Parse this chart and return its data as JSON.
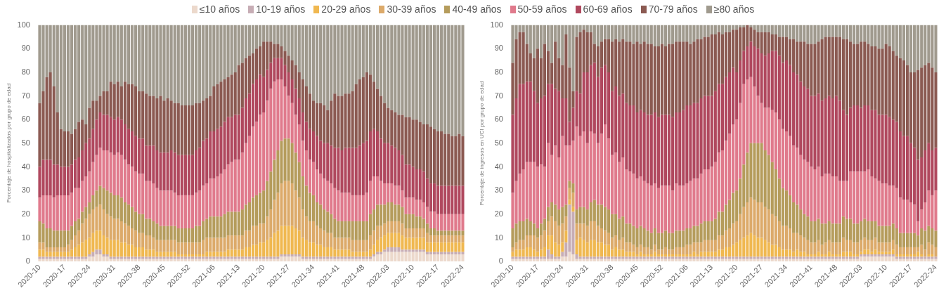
{
  "chart_data": [
    {
      "type": "bar",
      "stacked": true,
      "ylabel": "Porcentaje de hospitalizados por grupo de edad",
      "ylim": [
        0,
        100
      ],
      "yticks": [
        0,
        10,
        20,
        30,
        40,
        50,
        60,
        70,
        80,
        90,
        100
      ],
      "legend": "top",
      "categories": [
        "2020-10",
        null,
        null,
        null,
        null,
        null,
        null,
        "2020-17",
        null,
        null,
        null,
        null,
        null,
        null,
        "2020-24",
        null,
        null,
        null,
        null,
        null,
        null,
        "2020-31",
        null,
        null,
        null,
        null,
        null,
        null,
        "2020-38",
        null,
        null,
        null,
        null,
        null,
        null,
        "2020-45",
        null,
        null,
        null,
        null,
        null,
        null,
        "2020-52",
        null,
        null,
        null,
        null,
        null,
        null,
        "2021-06",
        null,
        null,
        null,
        null,
        null,
        null,
        "2021-13",
        null,
        null,
        null,
        null,
        null,
        null,
        "2021-20",
        null,
        null,
        null,
        null,
        null,
        null,
        "2021-27",
        null,
        null,
        null,
        null,
        null,
        null,
        "2021-34",
        null,
        null,
        null,
        null,
        null,
        null,
        "2021-41",
        null,
        null,
        null,
        null,
        null,
        null,
        "2021-48",
        null,
        null,
        null,
        null,
        null,
        null,
        "2022-03",
        null,
        null,
        null,
        null,
        null,
        null,
        "2022-10",
        null,
        null,
        null,
        null,
        null,
        null,
        "2022-17",
        null,
        null,
        null,
        null,
        null,
        null,
        "2022-24"
      ],
      "series": [
        {
          "name": "≤10 años",
          "color": "#ecd9cc",
          "values": [
            1,
            1,
            1,
            1,
            1,
            1,
            1,
            1,
            1,
            1,
            1,
            1,
            1,
            1,
            2,
            2,
            3,
            3,
            2,
            2,
            1,
            1,
            1,
            1,
            1,
            1,
            1,
            1,
            1,
            1,
            1,
            1,
            1,
            1,
            1,
            1,
            1,
            1,
            1,
            1,
            1,
            1,
            1,
            1,
            1,
            1,
            1,
            1,
            1,
            1,
            1,
            1,
            1,
            1,
            1,
            1,
            1,
            1,
            1,
            1,
            1,
            1,
            1,
            1,
            1,
            1,
            1,
            1,
            2,
            2,
            2,
            2,
            2,
            2,
            1,
            1,
            1,
            1,
            1,
            1,
            1,
            1,
            1,
            1,
            1,
            1,
            1,
            1,
            1,
            1,
            1,
            1,
            1,
            1,
            2,
            3,
            3,
            4,
            4,
            4,
            4,
            4,
            4,
            4,
            4,
            4,
            4,
            4,
            4,
            3,
            3,
            3,
            3,
            3,
            3,
            3,
            3,
            3,
            3,
            3
          ]
        },
        {
          "name": "10-19 años",
          "color": "#c7adb5",
          "values": [
            1,
            1,
            1,
            1,
            1,
            1,
            1,
            1,
            1,
            1,
            1,
            1,
            1,
            1,
            1,
            2,
            2,
            2,
            1,
            1,
            1,
            1,
            1,
            1,
            1,
            1,
            1,
            1,
            1,
            1,
            1,
            1,
            1,
            1,
            1,
            1,
            1,
            1,
            1,
            1,
            1,
            1,
            1,
            1,
            1,
            1,
            1,
            1,
            1,
            1,
            1,
            1,
            1,
            1,
            1,
            1,
            1,
            1,
            1,
            1,
            1,
            1,
            1,
            1,
            1,
            1,
            1,
            1,
            1,
            1,
            1,
            1,
            1,
            1,
            1,
            1,
            1,
            1,
            1,
            1,
            1,
            1,
            1,
            1,
            1,
            1,
            1,
            1,
            1,
            1,
            1,
            1,
            1,
            1,
            1,
            1,
            1,
            1,
            2,
            2,
            2,
            2,
            1,
            1,
            1,
            1,
            1,
            1,
            1,
            1,
            1,
            1,
            1,
            1,
            1,
            1,
            1,
            1,
            1,
            1
          ]
        },
        {
          "name": "20-29 años",
          "color": "#f0b850",
          "values": [
            3,
            3,
            2,
            2,
            2,
            2,
            2,
            2,
            2,
            3,
            4,
            5,
            6,
            7,
            7,
            8,
            8,
            8,
            8,
            7,
            7,
            7,
            7,
            6,
            6,
            5,
            5,
            4,
            4,
            4,
            3,
            3,
            3,
            2,
            2,
            2,
            2,
            2,
            2,
            1,
            1,
            1,
            1,
            1,
            1,
            1,
            1,
            2,
            2,
            2,
            2,
            2,
            2,
            3,
            3,
            3,
            3,
            3,
            4,
            4,
            5,
            5,
            6,
            6,
            7,
            8,
            10,
            11,
            12,
            12,
            12,
            12,
            11,
            10,
            8,
            7,
            6,
            6,
            5,
            5,
            4,
            4,
            4,
            3,
            3,
            3,
            3,
            3,
            2,
            2,
            2,
            2,
            2,
            3,
            4,
            5,
            6,
            6,
            6,
            6,
            6,
            6,
            6,
            5,
            5,
            5,
            5,
            5,
            5,
            4,
            4,
            4,
            4,
            4,
            4,
            4,
            4,
            4,
            4,
            4
          ]
        },
        {
          "name": "30-39 años",
          "color": "#dcaa6a",
          "values": [
            3,
            3,
            2,
            2,
            2,
            2,
            2,
            2,
            3,
            4,
            5,
            6,
            8,
            9,
            10,
            10,
            10,
            11,
            11,
            10,
            10,
            9,
            9,
            9,
            8,
            8,
            7,
            7,
            6,
            6,
            6,
            6,
            5,
            5,
            5,
            5,
            5,
            5,
            5,
            5,
            5,
            5,
            5,
            5,
            5,
            5,
            6,
            6,
            6,
            6,
            6,
            6,
            6,
            6,
            6,
            6,
            6,
            6,
            7,
            7,
            8,
            8,
            8,
            8,
            10,
            12,
            14,
            16,
            18,
            19,
            19,
            18,
            16,
            14,
            12,
            10,
            9,
            9,
            8,
            7,
            7,
            6,
            6,
            5,
            5,
            5,
            5,
            5,
            5,
            5,
            5,
            5,
            5,
            6,
            6,
            6,
            5,
            5,
            5,
            5,
            5,
            5,
            5,
            4,
            4,
            4,
            4,
            4,
            4,
            4,
            3,
            3,
            3,
            3,
            3,
            3,
            3,
            3,
            3,
            3
          ]
        },
        {
          "name": "40-49 años",
          "color": "#b59c5c",
          "values": [
            9,
            8,
            8,
            8,
            7,
            7,
            7,
            7,
            6,
            6,
            6,
            5,
            5,
            5,
            5,
            6,
            7,
            8,
            9,
            10,
            10,
            10,
            10,
            10,
            9,
            9,
            9,
            8,
            8,
            8,
            7,
            7,
            7,
            7,
            6,
            6,
            6,
            6,
            6,
            6,
            6,
            6,
            6,
            6,
            7,
            7,
            8,
            8,
            9,
            9,
            9,
            9,
            10,
            10,
            10,
            10,
            10,
            11,
            11,
            12,
            12,
            13,
            13,
            14,
            15,
            16,
            17,
            18,
            18,
            18,
            18,
            17,
            16,
            15,
            14,
            13,
            12,
            11,
            10,
            10,
            9,
            9,
            8,
            8,
            7,
            7,
            7,
            7,
            8,
            8,
            8,
            8,
            8,
            9,
            9,
            9,
            9,
            8,
            8,
            8,
            7,
            7,
            7,
            6,
            6,
            6,
            5,
            5,
            4,
            4,
            3,
            3,
            2,
            2,
            2,
            2,
            2,
            2,
            2,
            2
          ]
        },
        {
          "name": "50-59 años",
          "color": "#e07a8c",
          "values": [
            10,
            12,
            14,
            14,
            14,
            15,
            15,
            15,
            15,
            14,
            14,
            13,
            13,
            13,
            13,
            14,
            15,
            16,
            16,
            17,
            17,
            17,
            18,
            18,
            18,
            17,
            17,
            17,
            17,
            17,
            16,
            16,
            16,
            15,
            15,
            15,
            15,
            15,
            14,
            14,
            14,
            14,
            14,
            14,
            14,
            15,
            15,
            15,
            16,
            16,
            17,
            18,
            19,
            20,
            21,
            22,
            22,
            24,
            26,
            28,
            30,
            31,
            33,
            33,
            34,
            35,
            33,
            30,
            26,
            22,
            18,
            17,
            16,
            16,
            15,
            15,
            14,
            14,
            14,
            13,
            13,
            13,
            13,
            13,
            13,
            12,
            12,
            12,
            11,
            11,
            11,
            11,
            12,
            14,
            14,
            12,
            10,
            9,
            8,
            8,
            8,
            8,
            7,
            7,
            7,
            7,
            7,
            7,
            7,
            7,
            7,
            7,
            7,
            7,
            7,
            7,
            7,
            7,
            7,
            7
          ]
        },
        {
          "name": "60-69 años",
          "color": "#b0485e",
          "values": [
            13,
            15,
            15,
            15,
            14,
            13,
            12,
            12,
            12,
            12,
            12,
            13,
            13,
            14,
            14,
            14,
            15,
            15,
            15,
            15,
            15,
            15,
            15,
            15,
            15,
            15,
            15,
            15,
            15,
            15,
            15,
            15,
            16,
            16,
            16,
            16,
            16,
            17,
            17,
            17,
            17,
            17,
            17,
            17,
            18,
            18,
            19,
            19,
            20,
            20,
            20,
            20,
            20,
            20,
            19,
            19,
            19,
            19,
            19,
            18,
            18,
            18,
            17,
            15,
            13,
            11,
            10,
            9,
            9,
            9,
            10,
            10,
            11,
            11,
            12,
            12,
            13,
            13,
            14,
            14,
            15,
            16,
            16,
            17,
            18,
            18,
            19,
            19,
            20,
            20,
            21,
            22,
            22,
            21,
            20,
            19,
            18,
            17,
            17,
            16,
            16,
            15,
            15,
            14,
            14,
            13,
            13,
            13,
            13,
            12,
            12,
            12,
            12,
            12,
            12,
            12,
            12,
            12,
            12,
            12
          ]
        },
        {
          "name": "70-79 años",
          "color": "#8b5a52",
          "values": [
            27,
            29,
            35,
            37,
            33,
            22,
            16,
            15,
            15,
            13,
            13,
            15,
            13,
            8,
            13,
            12,
            8,
            7,
            10,
            10,
            15,
            15,
            15,
            14,
            18,
            19,
            20,
            21,
            20,
            20,
            22,
            21,
            21,
            22,
            24,
            22,
            23,
            21,
            21,
            22,
            21,
            21,
            21,
            21,
            20,
            19,
            17,
            17,
            15,
            19,
            19,
            19,
            18,
            17,
            18,
            18,
            21,
            19,
            17,
            16,
            13,
            13,
            12,
            15,
            12,
            9,
            6,
            6,
            5,
            6,
            7,
            8,
            10,
            11,
            14,
            15,
            15,
            13,
            14,
            16,
            16,
            14,
            19,
            23,
            22,
            23,
            23,
            23,
            24,
            27,
            28,
            28,
            29,
            24,
            20,
            18,
            18,
            17,
            15,
            15,
            15,
            15,
            17,
            20,
            20,
            20,
            21,
            20,
            20,
            23,
            24,
            23,
            23,
            23,
            22,
            22,
            21,
            21,
            22,
            21
          ]
        },
        {
          "name": "≥80 años",
          "color": "#a09a8e",
          "values": [
            33,
            28,
            22,
            20,
            26,
            37,
            44,
            45,
            45,
            46,
            44,
            41,
            40,
            42,
            35,
            32,
            32,
            30,
            28,
            28,
            24,
            25,
            24,
            26,
            24,
            25,
            25,
            26,
            28,
            28,
            29,
            30,
            30,
            31,
            30,
            32,
            31,
            32,
            33,
            33,
            34,
            34,
            34,
            34,
            33,
            33,
            32,
            31,
            30,
            26,
            25,
            24,
            23,
            22,
            21,
            20,
            17,
            16,
            14,
            13,
            12,
            10,
            9,
            7,
            7,
            7,
            8,
            8,
            9,
            11,
            13,
            15,
            17,
            20,
            23,
            26,
            29,
            32,
            33,
            33,
            34,
            36,
            32,
            29,
            30,
            30,
            29,
            29,
            28,
            25,
            23,
            22,
            20,
            21,
            24,
            27,
            30,
            33,
            35,
            36,
            37,
            38,
            38,
            39,
            39,
            40,
            40,
            41,
            42,
            42,
            43,
            44,
            45,
            45,
            46,
            46,
            47,
            47,
            46,
            47
          ]
        }
      ]
    },
    {
      "type": "bar",
      "stacked": true,
      "ylabel": "Porcentaje de ingresos en UCI por grupo de edad",
      "ylim": [
        0,
        100
      ],
      "yticks": [
        0,
        10,
        20,
        30,
        40,
        50,
        60,
        70,
        80,
        90,
        100
      ],
      "categories": [
        "2020-10",
        null,
        null,
        null,
        null,
        null,
        null,
        "2020-17",
        null,
        null,
        null,
        null,
        null,
        null,
        "2020-24",
        null,
        null,
        null,
        null,
        null,
        null,
        "2020-31",
        null,
        null,
        null,
        null,
        null,
        null,
        "2020-38",
        null,
        null,
        null,
        null,
        null,
        null,
        "2020-45",
        null,
        null,
        null,
        null,
        null,
        null,
        "2020-52",
        null,
        null,
        null,
        null,
        null,
        null,
        "2021-06",
        null,
        null,
        null,
        null,
        null,
        null,
        "2021-13",
        null,
        null,
        null,
        null,
        null,
        null,
        "2021-20",
        null,
        null,
        null,
        null,
        null,
        null,
        "2021-27",
        null,
        null,
        null,
        null,
        null,
        null,
        "2021-34",
        null,
        null,
        null,
        null,
        null,
        null,
        "2021-41",
        null,
        null,
        null,
        null,
        null,
        null,
        "2021-48",
        null,
        null,
        null,
        null,
        null,
        null,
        "2022-03",
        null,
        null,
        null,
        null,
        null,
        null,
        "2022-10",
        null,
        null,
        null,
        null,
        null,
        null,
        "2022-17",
        null,
        null,
        null,
        null,
        null,
        null,
        "2022-24"
      ],
      "series": [
        {
          "color": "#ecd9cc",
          "values": [
            1,
            1,
            1,
            1,
            1,
            1,
            1,
            1,
            1,
            1,
            1,
            1,
            1,
            1,
            2,
            2,
            4,
            3,
            1,
            1,
            1,
            1,
            1,
            1,
            1,
            1,
            1,
            1,
            1,
            1,
            1,
            1,
            1,
            1,
            1,
            1,
            1,
            1,
            1,
            1,
            1,
            1,
            1,
            1,
            1,
            1,
            1,
            1,
            1,
            1,
            1,
            1,
            1,
            1,
            1,
            1,
            1,
            1,
            1,
            1,
            1,
            1,
            1,
            1,
            1,
            1,
            1,
            1,
            1,
            1,
            1,
            1,
            1,
            1,
            1,
            1,
            1,
            1,
            1,
            1,
            1,
            1,
            1,
            1,
            1,
            1,
            1,
            1,
            1,
            1,
            1,
            1,
            1,
            1,
            1,
            1,
            1,
            1,
            2,
            2,
            2,
            2,
            2,
            2,
            2,
            2,
            2,
            2,
            1,
            1,
            1,
            1,
            1,
            1,
            1,
            1,
            1,
            1,
            1,
            1
          ]
        },
        {
          "color": "#c7adb5",
          "values": [
            1,
            1,
            1,
            1,
            1,
            1,
            1,
            1,
            1,
            1,
            4,
            2,
            1,
            1,
            2,
            6,
            20,
            18,
            2,
            1,
            1,
            1,
            1,
            1,
            1,
            1,
            1,
            1,
            1,
            1,
            1,
            1,
            1,
            1,
            1,
            1,
            1,
            1,
            1,
            1,
            1,
            1,
            1,
            1,
            1,
            1,
            1,
            1,
            1,
            1,
            1,
            1,
            1,
            1,
            1,
            1,
            1,
            1,
            1,
            1,
            1,
            1,
            1,
            1,
            1,
            1,
            1,
            1,
            1,
            1,
            1,
            1,
            1,
            1,
            1,
            1,
            1,
            1,
            1,
            1,
            1,
            1,
            1,
            1,
            1,
            1,
            1,
            1,
            1,
            1,
            1,
            1,
            1,
            1,
            1,
            1,
            1,
            1,
            1,
            1,
            1,
            1,
            1,
            1,
            1,
            1,
            1,
            1,
            1,
            1,
            1,
            1,
            1,
            1,
            1,
            1,
            1,
            1,
            1,
            1
          ]
        },
        {
          "color": "#f0b850",
          "values": [
            2,
            3,
            3,
            3,
            4,
            4,
            3,
            2,
            3,
            4,
            6,
            8,
            6,
            5,
            4,
            5,
            2,
            2,
            6,
            8,
            7,
            6,
            7,
            7,
            6,
            6,
            5,
            5,
            3,
            4,
            3,
            3,
            2,
            2,
            2,
            1,
            2,
            1,
            1,
            1,
            2,
            1,
            1,
            1,
            1,
            1,
            1,
            1,
            1,
            1,
            1,
            2,
            1,
            2,
            2,
            2,
            2,
            2,
            3,
            3,
            4,
            4,
            5,
            6,
            7,
            8,
            9,
            10,
            9,
            8,
            8,
            7,
            6,
            5,
            5,
            4,
            3,
            3,
            3,
            2,
            3,
            2,
            2,
            1,
            1,
            1,
            2,
            1,
            1,
            2,
            1,
            1,
            1,
            2,
            2,
            2,
            1,
            1,
            1,
            2,
            2,
            1,
            2,
            1,
            1,
            1,
            1,
            2,
            1,
            1,
            1,
            1,
            1,
            1,
            2,
            1,
            0,
            1,
            1,
            0
          ]
        },
        {
          "color": "#dcaa6a",
          "values": [
            2,
            3,
            4,
            4,
            5,
            5,
            6,
            6,
            6,
            7,
            6,
            8,
            9,
            8,
            8,
            6,
            5,
            6,
            7,
            6,
            7,
            7,
            8,
            8,
            7,
            6,
            6,
            5,
            5,
            5,
            4,
            5,
            4,
            4,
            3,
            3,
            3,
            3,
            3,
            2,
            3,
            2,
            2,
            3,
            2,
            2,
            3,
            3,
            3,
            4,
            4,
            4,
            5,
            4,
            5,
            5,
            5,
            5,
            6,
            6,
            7,
            8,
            9,
            9,
            11,
            13,
            14,
            15,
            15,
            15,
            15,
            14,
            14,
            13,
            12,
            11,
            10,
            10,
            9,
            8,
            7,
            7,
            6,
            6,
            5,
            5,
            5,
            4,
            5,
            5,
            5,
            5,
            5,
            6,
            5,
            5,
            5,
            5,
            5,
            5,
            4,
            5,
            5,
            4,
            4,
            4,
            4,
            4,
            4,
            3,
            3,
            3,
            3,
            3,
            2,
            4,
            3,
            5,
            4,
            4
          ]
        },
        {
          "color": "#b59c5c",
          "values": [
            8,
            8,
            8,
            8,
            7,
            6,
            5,
            4,
            5,
            5,
            6,
            6,
            7,
            7,
            7,
            5,
            3,
            4,
            6,
            7,
            7,
            7,
            8,
            9,
            9,
            10,
            10,
            10,
            10,
            9,
            9,
            9,
            8,
            8,
            8,
            8,
            8,
            8,
            7,
            7,
            7,
            7,
            7,
            7,
            7,
            7,
            7,
            7,
            7,
            7,
            7,
            7,
            7,
            8,
            8,
            8,
            8,
            9,
            10,
            10,
            11,
            12,
            13,
            13,
            15,
            18,
            21,
            23,
            24,
            25,
            25,
            24,
            23,
            22,
            20,
            18,
            16,
            15,
            14,
            13,
            12,
            11,
            10,
            10,
            9,
            9,
            9,
            9,
            8,
            8,
            8,
            8,
            8,
            9,
            9,
            9,
            8,
            8,
            8,
            8,
            8,
            8,
            7,
            7,
            7,
            7,
            7,
            7,
            7,
            6,
            6,
            6,
            6,
            6,
            5,
            7,
            8,
            7,
            7,
            7
          ]
        },
        {
          "color": "#e07a8c",
          "values": [
            15,
            18,
            20,
            22,
            24,
            25,
            26,
            26,
            25,
            22,
            27,
            20,
            25,
            22,
            30,
            25,
            15,
            18,
            35,
            30,
            32,
            28,
            30,
            28,
            26,
            30,
            35,
            30,
            25,
            26,
            24,
            25,
            23,
            22,
            22,
            21,
            21,
            20,
            20,
            20,
            19,
            19,
            20,
            19,
            20,
            18,
            20,
            19,
            19,
            19,
            20,
            20,
            20,
            21,
            22,
            22,
            23,
            24,
            25,
            26,
            27,
            28,
            29,
            30,
            32,
            34,
            31,
            28,
            24,
            20,
            17,
            18,
            20,
            22,
            24,
            25,
            25,
            25,
            25,
            24,
            24,
            23,
            23,
            23,
            23,
            22,
            22,
            20,
            21,
            20,
            20,
            20,
            18,
            15,
            16,
            20,
            22,
            22,
            21,
            20,
            22,
            19,
            18,
            19,
            18,
            18,
            17,
            16,
            17,
            15,
            14,
            14,
            13,
            12,
            6,
            8,
            12,
            15,
            14,
            17
          ]
        },
        {
          "color": "#b0485e",
          "values": [
            33,
            35,
            38,
            36,
            34,
            34,
            30,
            27,
            28,
            30,
            25,
            30,
            24,
            28,
            16,
            20,
            10,
            14,
            15,
            18,
            25,
            30,
            28,
            30,
            28,
            28,
            25,
            28,
            27,
            28,
            28,
            27,
            28,
            28,
            29,
            28,
            28,
            29,
            29,
            30,
            30,
            30,
            30,
            30,
            30,
            31,
            30,
            31,
            32,
            33,
            32,
            32,
            32,
            32,
            31,
            31,
            30,
            30,
            29,
            28,
            27,
            26,
            24,
            20,
            18,
            14,
            14,
            15,
            17,
            20,
            21,
            22,
            23,
            25,
            26,
            27,
            28,
            30,
            30,
            31,
            31,
            31,
            31,
            31,
            30,
            31,
            31,
            32,
            32,
            33,
            33,
            34,
            34,
            30,
            28,
            27,
            28,
            28,
            27,
            28,
            27,
            28,
            29,
            28,
            29,
            29,
            29,
            28,
            28,
            28,
            27,
            27,
            25,
            24,
            26,
            22,
            22,
            20,
            19,
            18
          ]
        },
        {
          "color": "#8b5a52",
          "values": [
            22,
            25,
            22,
            22,
            16,
            12,
            14,
            23,
            17,
            22,
            14,
            9,
            20,
            14,
            14,
            27,
            23,
            7,
            23,
            26,
            18,
            17,
            14,
            8,
            13,
            11,
            11,
            14,
            21,
            20,
            23,
            23,
            26,
            27,
            26,
            30,
            28,
            30,
            30,
            30,
            28,
            30,
            30,
            29,
            30,
            31,
            30,
            30,
            29,
            27,
            26,
            26,
            27,
            25,
            25,
            25,
            26,
            24,
            22,
            21,
            19,
            17,
            16,
            18,
            14,
            10,
            9,
            6,
            7,
            7,
            9,
            10,
            9,
            7,
            7,
            8,
            11,
            10,
            11,
            14,
            14,
            17,
            19,
            19,
            22,
            22,
            22,
            26,
            26,
            25,
            26,
            25,
            27,
            30,
            32,
            28,
            26,
            26,
            28,
            27,
            26,
            27,
            27,
            28,
            28,
            30,
            30,
            29,
            28,
            31,
            32,
            30,
            30,
            32,
            38,
            38,
            36,
            34,
            35,
            32
          ]
        },
        {
          "color": "#a09a8e",
          "values": [
            16,
            6,
            3,
            3,
            8,
            12,
            14,
            10,
            14,
            8,
            11,
            16,
            7,
            14,
            17,
            4,
            18,
            28,
            5,
            3,
            2,
            3,
            3,
            8,
            9,
            7,
            6,
            6,
            7,
            6,
            7,
            6,
            7,
            7,
            8,
            7,
            8,
            7,
            8,
            8,
            9,
            9,
            8,
            9,
            8,
            8,
            7,
            7,
            7,
            7,
            8,
            7,
            6,
            6,
            5,
            5,
            4,
            4,
            3,
            4,
            3,
            3,
            2,
            2,
            1,
            1,
            0,
            1,
            2,
            3,
            3,
            3,
            3,
            4,
            4,
            5,
            5,
            5,
            6,
            6,
            7,
            7,
            7,
            8,
            8,
            8,
            7,
            6,
            5,
            5,
            5,
            5,
            5,
            6,
            6,
            7,
            8,
            8,
            7,
            7,
            8,
            9,
            9,
            10,
            10,
            8,
            9,
            11,
            13,
            14,
            15,
            17,
            20,
            20,
            19,
            18,
            17,
            16,
            18,
            20
          ]
        }
      ]
    }
  ]
}
